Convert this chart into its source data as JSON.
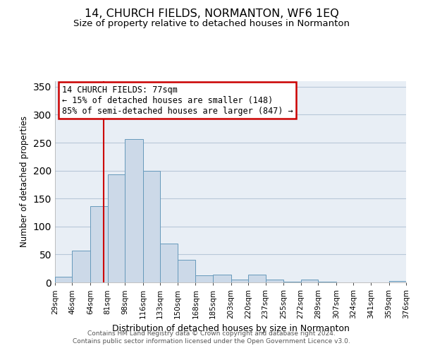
{
  "title": "14, CHURCH FIELDS, NORMANTON, WF6 1EQ",
  "subtitle": "Size of property relative to detached houses in Normanton",
  "xlabel": "Distribution of detached houses by size in Normanton",
  "ylabel": "Number of detached properties",
  "bar_color": "#ccd9e8",
  "bar_edge_color": "#6699bb",
  "bin_edges": [
    29,
    46,
    64,
    81,
    98,
    116,
    133,
    150,
    168,
    185,
    203,
    220,
    237,
    255,
    272,
    289,
    307,
    324,
    341,
    359,
    376
  ],
  "bin_labels": [
    "29sqm",
    "46sqm",
    "64sqm",
    "81sqm",
    "98sqm",
    "116sqm",
    "133sqm",
    "150sqm",
    "168sqm",
    "185sqm",
    "203sqm",
    "220sqm",
    "237sqm",
    "255sqm",
    "272sqm",
    "289sqm",
    "307sqm",
    "324sqm",
    "341sqm",
    "359sqm",
    "376sqm"
  ],
  "bar_heights": [
    10,
    57,
    136,
    193,
    257,
    200,
    70,
    41,
    13,
    14,
    5,
    14,
    5,
    1,
    5,
    1,
    0,
    0,
    0,
    2
  ],
  "vline_x": 77,
  "vline_color": "#cc0000",
  "ylim": [
    0,
    360
  ],
  "yticks": [
    0,
    50,
    100,
    150,
    200,
    250,
    300,
    350
  ],
  "annotation_title": "14 CHURCH FIELDS: 77sqm",
  "annotation_line1": "← 15% of detached houses are smaller (148)",
  "annotation_line2": "85% of semi-detached houses are larger (847) →",
  "annotation_box_color": "#ffffff",
  "annotation_box_edge": "#cc0000",
  "footer1": "Contains HM Land Registry data © Crown copyright and database right 2024.",
  "footer2": "Contains public sector information licensed under the Open Government Licence v3.0.",
  "background_color": "#ffffff",
  "plot_background": "#e8eef5"
}
